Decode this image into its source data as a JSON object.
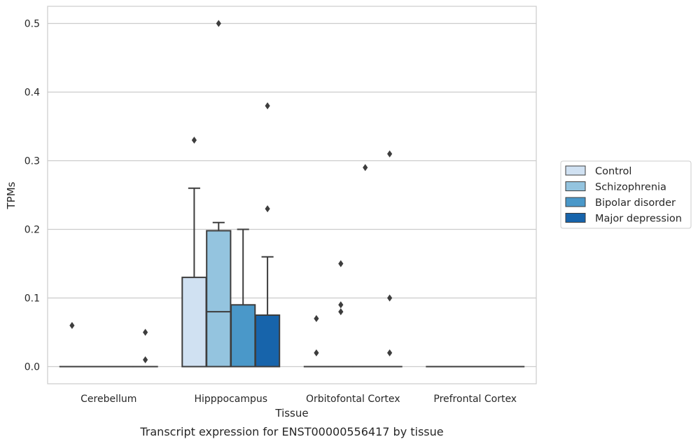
{
  "chart_data": {
    "type": "box",
    "caption": "Transcript expression for ENST00000556417 by tissue",
    "xlabel": "Tissue",
    "ylabel": "TPMs",
    "ylim": [
      -0.025,
      0.525
    ],
    "yticks": [
      0.0,
      0.1,
      0.2,
      0.3,
      0.4,
      0.5
    ],
    "ytick_labels": [
      "0.0",
      "0.1",
      "0.2",
      "0.3",
      "0.4",
      "0.5"
    ],
    "grid": true,
    "legend_position": "right",
    "categories": [
      "Cerebellum",
      "Hipppocampus",
      "Orbitofontal Cortex",
      "Prefrontal Cortex"
    ],
    "series": [
      {
        "name": "Control",
        "color": "#d0e1f2",
        "boxes": [
          {
            "q1": 0,
            "median": 0,
            "q3": 0,
            "whisker_low": 0,
            "whisker_high": 0,
            "outliers": [
              0.06
            ]
          },
          {
            "q1": 0,
            "median": 0,
            "q3": 0.13,
            "whisker_low": 0,
            "whisker_high": 0.26,
            "outliers": [
              0.33
            ]
          },
          {
            "q1": 0,
            "median": 0,
            "q3": 0,
            "whisker_low": 0,
            "whisker_high": 0,
            "outliers": [
              0.07,
              0.02
            ]
          },
          {
            "q1": 0,
            "median": 0,
            "q3": 0,
            "whisker_low": 0,
            "whisker_high": 0,
            "outliers": []
          }
        ]
      },
      {
        "name": "Schizophrenia",
        "color": "#94c4df",
        "boxes": [
          {
            "q1": 0,
            "median": 0,
            "q3": 0,
            "whisker_low": 0,
            "whisker_high": 0,
            "outliers": []
          },
          {
            "q1": 0,
            "median": 0.08,
            "q3": 0.198,
            "whisker_low": 0,
            "whisker_high": 0.21,
            "outliers": [
              0.5
            ]
          },
          {
            "q1": 0,
            "median": 0,
            "q3": 0,
            "whisker_low": 0,
            "whisker_high": 0,
            "outliers": [
              0.15,
              0.09,
              0.08
            ]
          },
          {
            "q1": 0,
            "median": 0,
            "q3": 0,
            "whisker_low": 0,
            "whisker_high": 0,
            "outliers": []
          }
        ]
      },
      {
        "name": "Bipolar disorder",
        "color": "#4a98c9",
        "boxes": [
          {
            "q1": 0,
            "median": 0,
            "q3": 0,
            "whisker_low": 0,
            "whisker_high": 0,
            "outliers": []
          },
          {
            "q1": 0,
            "median": 0,
            "q3": 0.09,
            "whisker_low": 0,
            "whisker_high": 0.2,
            "outliers": []
          },
          {
            "q1": 0,
            "median": 0,
            "q3": 0,
            "whisker_low": 0,
            "whisker_high": 0,
            "outliers": [
              0.29
            ]
          },
          {
            "q1": 0,
            "median": 0,
            "q3": 0,
            "whisker_low": 0,
            "whisker_high": 0,
            "outliers": []
          }
        ]
      },
      {
        "name": "Major depression",
        "color": "#1764ab",
        "boxes": [
          {
            "q1": 0,
            "median": 0,
            "q3": 0,
            "whisker_low": 0,
            "whisker_high": 0,
            "outliers": [
              0.05,
              0.01
            ]
          },
          {
            "q1": 0,
            "median": 0,
            "q3": 0.075,
            "whisker_low": 0,
            "whisker_high": 0.16,
            "outliers": [
              0.38,
              0.23
            ]
          },
          {
            "q1": 0,
            "median": 0,
            "q3": 0,
            "whisker_low": 0,
            "whisker_high": 0,
            "outliers": [
              0.31,
              0.1,
              0.02
            ]
          },
          {
            "q1": 0,
            "median": 0,
            "q3": 0,
            "whisker_low": 0,
            "whisker_high": 0,
            "outliers": []
          }
        ]
      }
    ]
  }
}
